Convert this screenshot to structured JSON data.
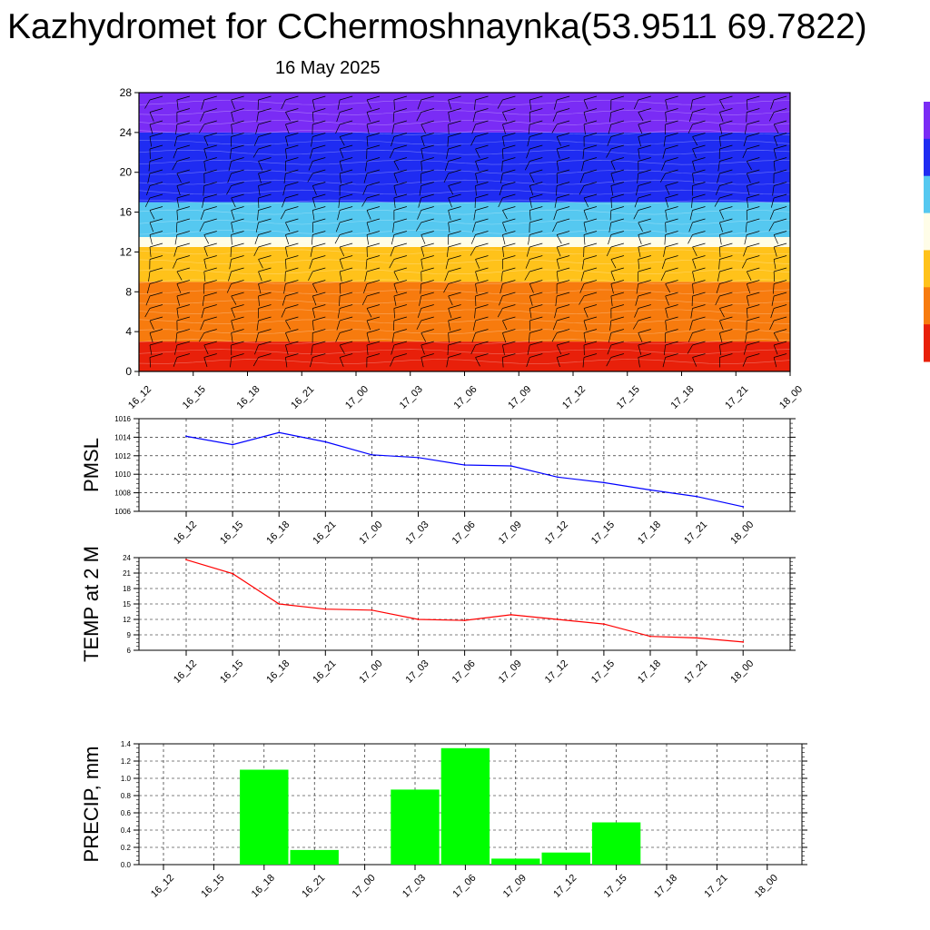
{
  "header": {
    "title": "Kazhydromet for CChermoshnaynka(53.9511 69.7822)",
    "subtitle": "16 May 2025"
  },
  "chart_data": [
    {
      "type": "heatmap",
      "id": "temperature-cross-section",
      "x_labels": [
        "16_12",
        "16_15",
        "16_18",
        "16_21",
        "17_00",
        "17_03",
        "17_06",
        "17_09",
        "17_12",
        "17_15",
        "17_18",
        "17_21",
        "18_00"
      ],
      "y_ticks": [
        0,
        4,
        8,
        12,
        16,
        20,
        24,
        28
      ],
      "ylim": [
        0,
        28
      ],
      "color_bands": [
        {
          "from": 0,
          "to": 3,
          "color": "#e8200a"
        },
        {
          "from": 3,
          "to": 9,
          "color": "#f77b0e"
        },
        {
          "from": 9,
          "to": 12.5,
          "color": "#ffc21a"
        },
        {
          "from": 12.5,
          "to": 13.5,
          "color": "#fffde8"
        },
        {
          "from": 13.5,
          "to": 17,
          "color": "#55c8f0"
        },
        {
          "from": 17,
          "to": 24,
          "color": "#1f2cf2"
        },
        {
          "from": 24,
          "to": 28,
          "color": "#7a2cf5"
        }
      ],
      "overlay": "wind barbs",
      "colorbar": [
        "#e8200a",
        "#f77b0e",
        "#ffc21a",
        "#fffde8",
        "#55c8f0",
        "#1f2cf2",
        "#7a2cf5"
      ]
    },
    {
      "type": "line",
      "id": "pmsl",
      "ylabel": "PMSL",
      "categories": [
        "16_12",
        "16_15",
        "16_18",
        "16_21",
        "17_00",
        "17_03",
        "17_06",
        "17_09",
        "17_12",
        "17_15",
        "17_18",
        "17_21",
        "18_00"
      ],
      "values": [
        1014.1,
        1013.2,
        1014.5,
        1013.5,
        1012.1,
        1011.8,
        1011.0,
        1010.9,
        1009.7,
        1009.1,
        1008.3,
        1007.6,
        1006.5
      ],
      "ylim": [
        1006,
        1016
      ],
      "y_ticks": [
        1006,
        1008,
        1010,
        1012,
        1014,
        1016
      ],
      "color": "#0000ff",
      "grid": true
    },
    {
      "type": "line",
      "id": "temp-2m",
      "ylabel": "TEMP at 2 M",
      "categories": [
        "16_12",
        "16_15",
        "16_18",
        "16_21",
        "17_00",
        "17_03",
        "17_06",
        "17_09",
        "17_12",
        "17_15",
        "17_18",
        "17_21",
        "18_00"
      ],
      "values": [
        23.6,
        20.9,
        15.0,
        14.0,
        13.8,
        12.0,
        11.8,
        12.9,
        12.0,
        11.1,
        8.7,
        8.4,
        7.6
      ],
      "ylim": [
        6,
        24
      ],
      "y_ticks": [
        6,
        9,
        12,
        15,
        18,
        21,
        24
      ],
      "color": "#ff0000",
      "grid": true
    },
    {
      "type": "bar",
      "id": "precip",
      "ylabel": "PRECIP, mm",
      "categories": [
        "16_12",
        "16_15",
        "16_18",
        "16_21",
        "17_00",
        "17_03",
        "17_06",
        "17_09",
        "17_12",
        "17_15",
        "17_18",
        "17_21",
        "18_00"
      ],
      "values": [
        0,
        0,
        1.1,
        0.17,
        0,
        0.87,
        1.35,
        0.07,
        0.14,
        0.49,
        0,
        0,
        0
      ],
      "ylim": [
        0,
        1.4
      ],
      "y_ticks": [
        0.0,
        0.2,
        0.4,
        0.6,
        0.8,
        1.0,
        1.2,
        1.4
      ],
      "y_tick_labels": [
        "0.0",
        "0.2",
        "0.4",
        "0.6",
        "0.8",
        "1.0",
        "1.2",
        "1.4"
      ],
      "color": "#00ff00",
      "grid": true
    }
  ]
}
